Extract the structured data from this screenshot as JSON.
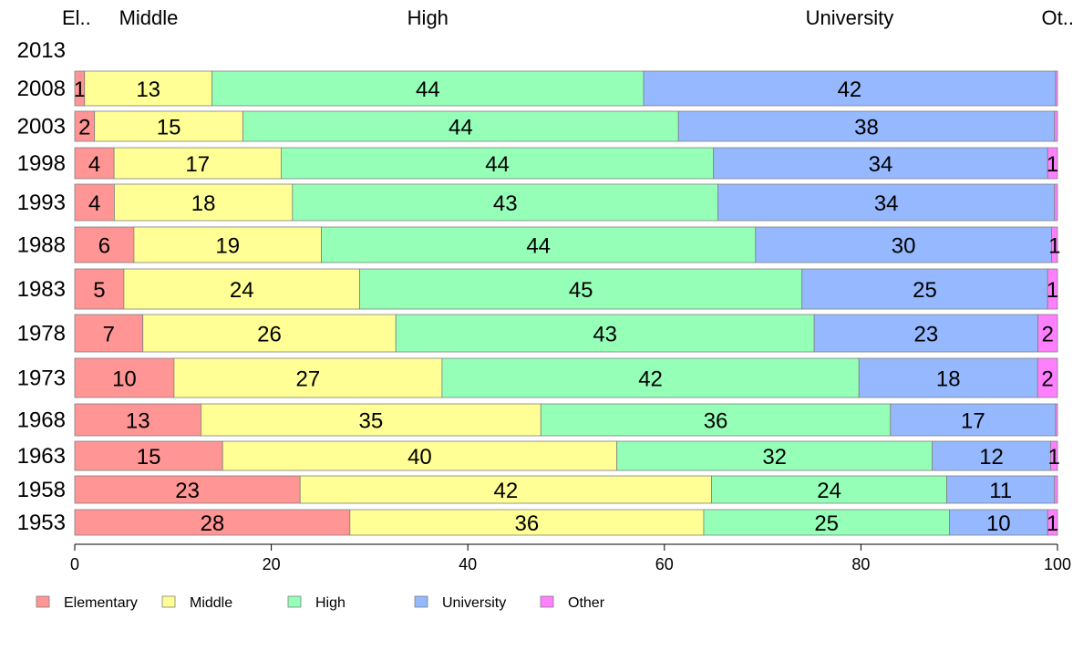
{
  "chart_data": {
    "type": "bar",
    "orientation": "horizontal",
    "stacked": true,
    "title": "",
    "xlabel": "",
    "ylabel": "",
    "xlim": [
      0,
      100
    ],
    "x_ticks": [
      "0",
      "20",
      "40",
      "60",
      "80",
      "100"
    ],
    "grid": false,
    "legend_position": "bottom-left",
    "column_headers": [
      "El..",
      "Middle",
      "High",
      "University",
      "Ot.."
    ],
    "categories": [
      "2013",
      "2008",
      "2003",
      "1998",
      "1993",
      "1988",
      "1983",
      "1978",
      "1973",
      "1968",
      "1963",
      "1958",
      "1953"
    ],
    "series": [
      {
        "name": "Elementary",
        "color": "#ff9595",
        "values": [
          null,
          1,
          2,
          4,
          4,
          6,
          5,
          7,
          10,
          13,
          15,
          23,
          28
        ],
        "labels": [
          "",
          "1",
          "2",
          "4",
          "4",
          "6",
          "5",
          "7",
          "10",
          "13",
          "15",
          "23",
          "28"
        ]
      },
      {
        "name": "Middle",
        "color": "#ffff95",
        "values": [
          null,
          13,
          15,
          17,
          18,
          19,
          24,
          26,
          27,
          35,
          40,
          42,
          36
        ],
        "labels": [
          "",
          "13",
          "15",
          "17",
          "18",
          "19",
          "24",
          "26",
          "27",
          "35",
          "40",
          "42",
          "36"
        ]
      },
      {
        "name": "High",
        "color": "#95ffb8",
        "values": [
          null,
          44,
          44,
          44,
          43,
          44,
          45,
          43,
          42,
          36,
          32,
          24,
          25
        ],
        "labels": [
          "",
          "44",
          "44",
          "44",
          "43",
          "44",
          "45",
          "43",
          "42",
          "36",
          "32",
          "24",
          "25"
        ]
      },
      {
        "name": "University",
        "color": "#95b8ff",
        "values": [
          null,
          42,
          38,
          34,
          34,
          30,
          25,
          23,
          18,
          17,
          12,
          11,
          10
        ],
        "labels": [
          "",
          "42",
          "38",
          "34",
          "34",
          "30",
          "25",
          "23",
          "18",
          "17",
          "12",
          "11",
          "10"
        ]
      },
      {
        "name": "Other",
        "color": "#ff80ff",
        "values": [
          null,
          0.2,
          0.3,
          1,
          0.3,
          0.6,
          1,
          2,
          2,
          0.2,
          0.7,
          0.3,
          1
        ],
        "labels": [
          "",
          "",
          "",
          "1",
          "",
          "1",
          "1",
          "2",
          "2",
          "",
          "1",
          "",
          "1"
        ]
      }
    ]
  }
}
